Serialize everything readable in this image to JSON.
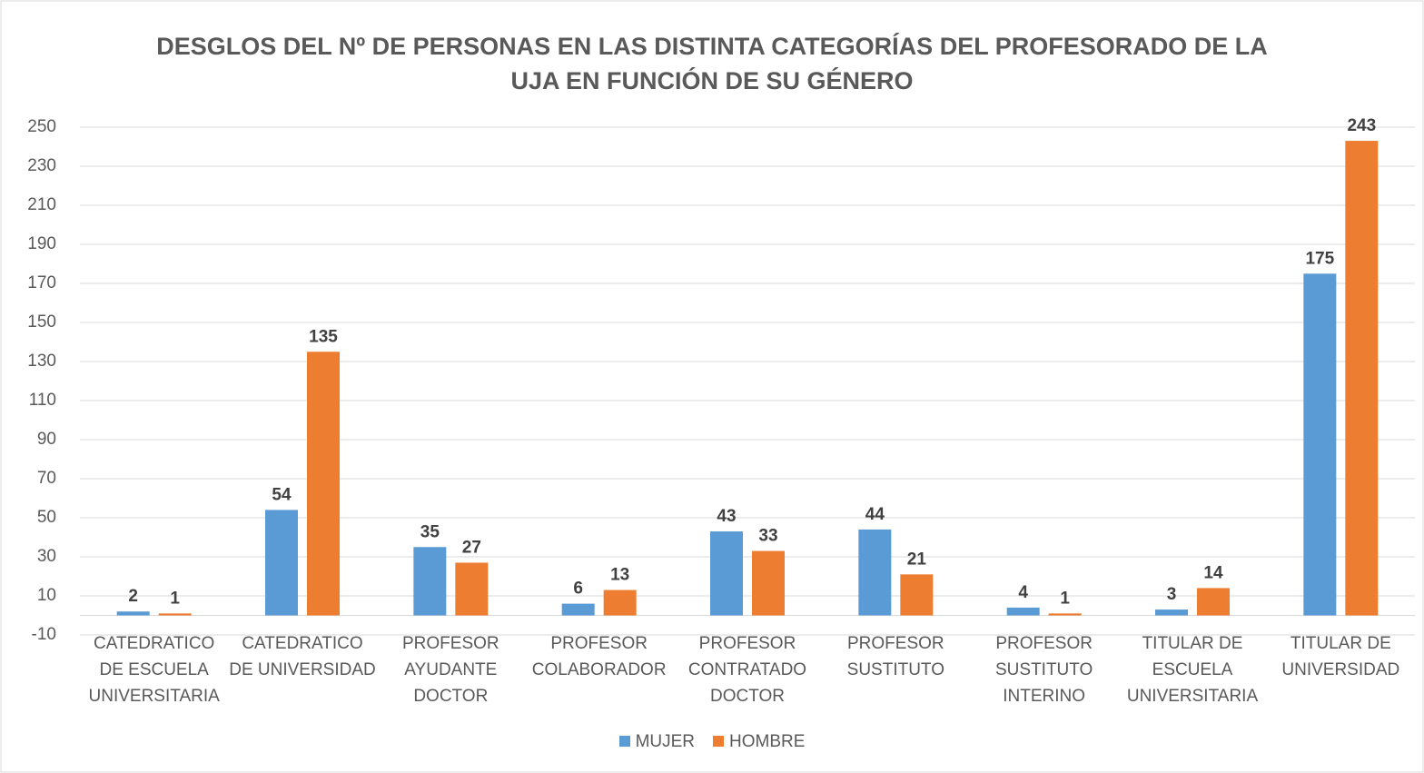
{
  "chart_data": {
    "type": "bar",
    "title": "DESGLOS DEL Nº DE PERSONAS EN LAS DISTINTA CATEGORÍAS DEL PROFESORADO DE LA UJA EN FUNCIÓN DE SU GÉNERO",
    "categories": [
      "CATEDRATICO DE ESCUELA UNIVERSITARIA",
      "CATEDRATICO DE UNIVERSIDAD",
      "PROFESOR AYUDANTE DOCTOR",
      "PROFESOR COLABORADOR",
      "PROFESOR CONTRATADO DOCTOR",
      "PROFESOR SUSTITUTO",
      "PROFESOR SUSTITUTO INTERINO",
      "TITULAR DE ESCUELA UNIVERSITARIA",
      "TITULAR DE UNIVERSIDAD"
    ],
    "series": [
      {
        "name": "MUJER",
        "color": "#5b9bd5",
        "values": [
          2,
          54,
          35,
          6,
          43,
          44,
          4,
          3,
          175
        ]
      },
      {
        "name": "HOMBRE",
        "color": "#ed7d31",
        "values": [
          1,
          135,
          27,
          13,
          33,
          21,
          1,
          14,
          243
        ]
      }
    ],
    "ylim": [
      -10,
      250
    ],
    "yticks": [
      -10,
      10,
      30,
      50,
      70,
      90,
      110,
      130,
      150,
      170,
      190,
      210,
      230,
      250
    ],
    "grid": true,
    "legend": "bottom"
  }
}
